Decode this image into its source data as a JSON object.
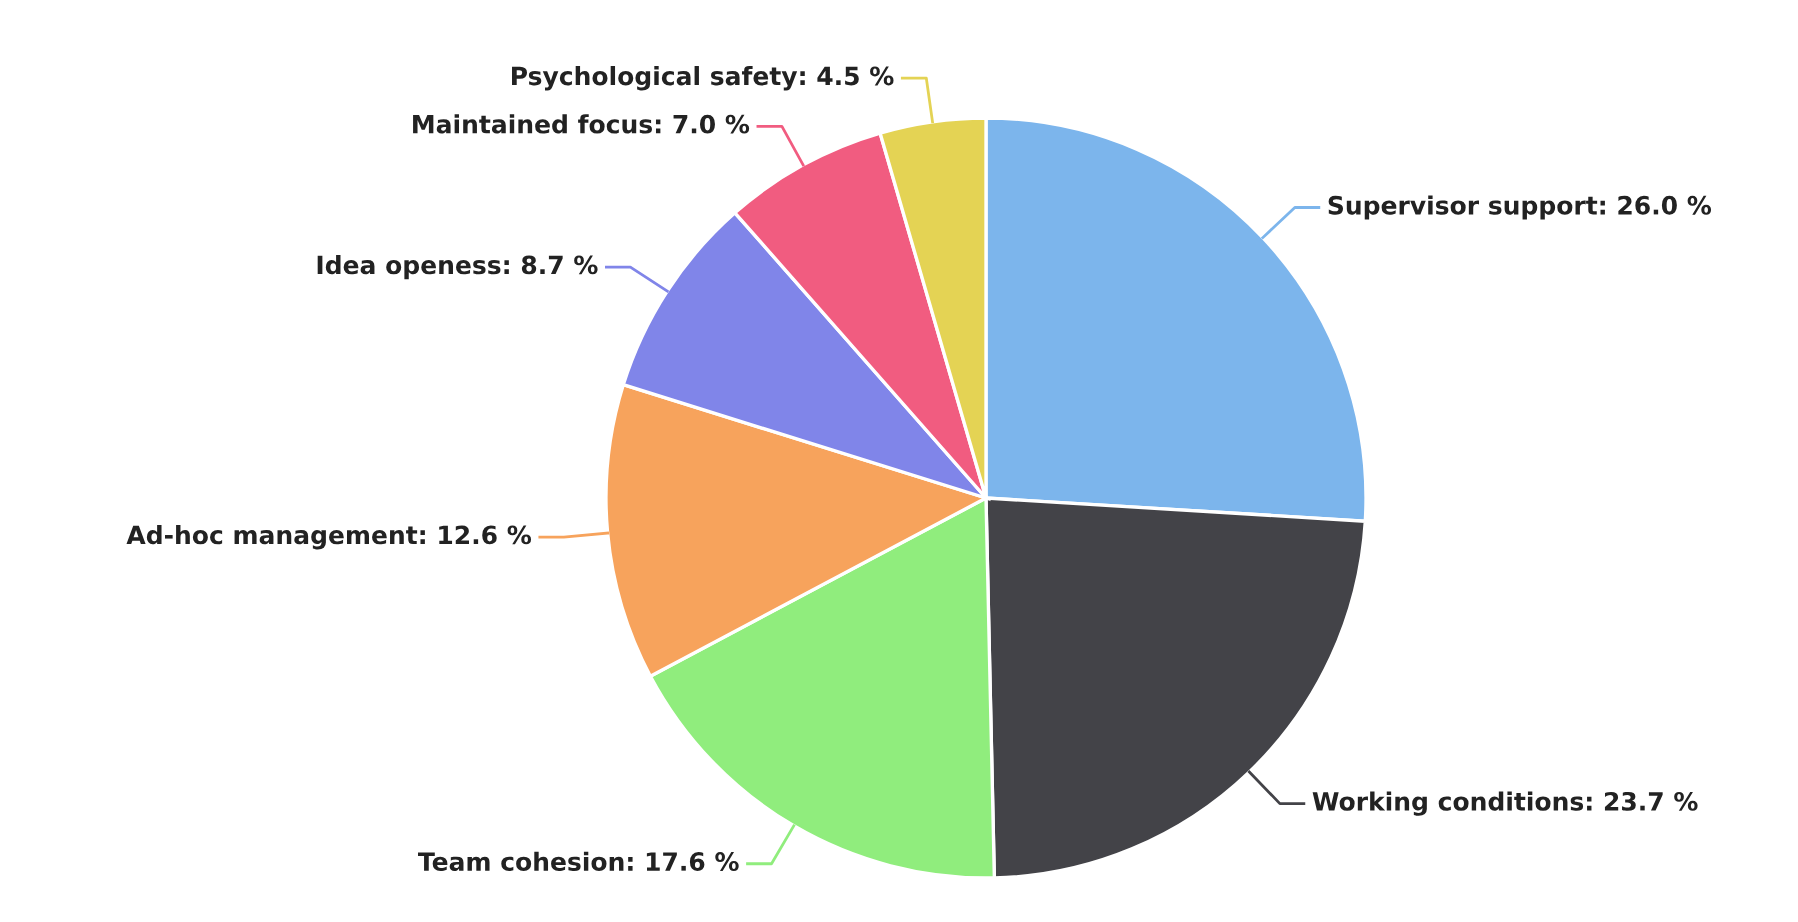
{
  "chart_data": {
    "type": "pie",
    "categories": [
      "Supervisor support",
      "Working conditions",
      "Team cohesion",
      "Ad-hoc management",
      "Idea openess",
      "Maintained focus",
      "Psychological safety"
    ],
    "values": [
      26.0,
      23.7,
      17.6,
      12.6,
      8.7,
      7.0,
      4.5
    ],
    "value_labels": [
      "26.0 %",
      "23.7 %",
      "17.6 %",
      "12.6 %",
      "8.7 %",
      "7.0 %",
      "4.5 %"
    ],
    "colors": [
      "#7cb5ec",
      "#434348",
      "#90ed7d",
      "#f7a35c",
      "#8085e9",
      "#f15c80",
      "#e4d354"
    ]
  }
}
